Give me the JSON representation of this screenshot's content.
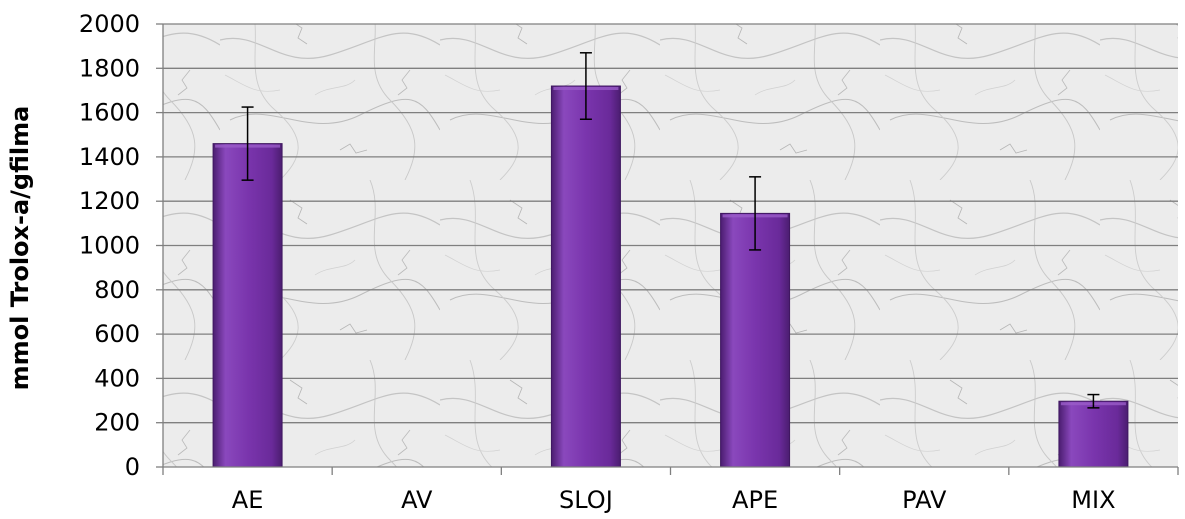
{
  "chart_data": {
    "type": "bar",
    "title": "",
    "xlabel": "",
    "ylabel": "mmol Trolox-a/gfilma",
    "categories": [
      "AE",
      "AV",
      "SLOJ",
      "APE",
      "PAV",
      "MIX"
    ],
    "values": [
      1460,
      0,
      1720,
      1145,
      0,
      297
    ],
    "error": [
      165,
      0,
      150,
      165,
      0,
      30
    ],
    "ylim": [
      0,
      2000
    ],
    "yticks": [
      0,
      200,
      400,
      600,
      800,
      1000,
      1200,
      1400,
      1600,
      1800,
      2000
    ],
    "grid": true,
    "legend": "none",
    "colors": {
      "bar": "#7030a0",
      "bar_light": "#9a5cc8",
      "bar_dark": "#4b1d70",
      "grid": "#7f7f7f",
      "axis": "#7f7f7f",
      "error_bar": "#000000",
      "plot_background": "#e6e6e6"
    }
  }
}
